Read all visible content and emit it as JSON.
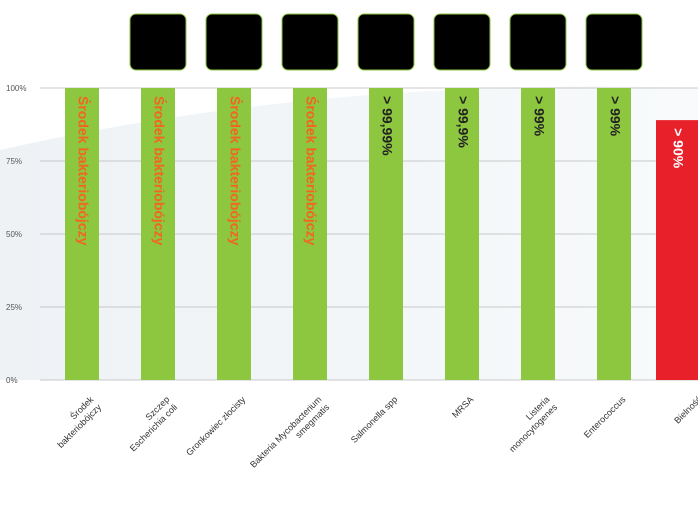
{
  "chart_data": {
    "type": "bar",
    "categories": [
      [
        "Środek",
        "bakteriobójczy"
      ],
      [
        "Szczep",
        "Escherichia coli"
      ],
      [
        "Gronkowiec złocisty"
      ],
      [
        "Bakteria Mycobacterium",
        "smegmatis"
      ],
      [
        "Salmonella spp"
      ],
      [
        "MRSA"
      ],
      [
        "Listeria",
        "monocytogenes"
      ],
      [
        "Enterococcus"
      ],
      [
        "Bielność"
      ]
    ],
    "values": [
      100,
      100,
      100,
      100,
      100,
      100,
      100,
      100,
      89
    ],
    "bar_labels": [
      "Środek bakteriobójczy",
      "Środek bakteriobójczy",
      "Środek bakteriobójczy",
      "Środek bakteriobójczy",
      "> 99,99%",
      "> 99,9%",
      "> 99%",
      "> 99%",
      "> 90%"
    ],
    "yticks": [
      "0%",
      "25%",
      "50%",
      "75%",
      "100%"
    ],
    "ylim": [
      0,
      100
    ],
    "grid": true,
    "colors": {
      "bar": "#8dc63f",
      "bar_highlight": "#e8202a",
      "label_orange": "#f26522",
      "label_dark": "#222222",
      "grid": "#b8b8b8",
      "thumb_border": "#8dc63f"
    },
    "thumbnails": [
      {
        "icon": "rod-bacteria-micrograph-icon",
        "bg": "#5a5a5a",
        "fg": "#c9c9c9"
      },
      {
        "icon": "cell-smear-micrograph-icon",
        "bg": "#f2f2f4",
        "fg": "#7a5fb0"
      },
      {
        "icon": "pink-tissue-micrograph-icon",
        "bg": "#e3c9cc",
        "fg": "#a37e86"
      },
      {
        "icon": "yellow-colony-micrograph-icon",
        "bg": "#c9c238",
        "fg": "#7a6b1a"
      },
      {
        "icon": "grey-cocci-micrograph-icon",
        "bg": "#6f7478",
        "fg": "#2c2f33"
      },
      {
        "icon": "pink-cell-micrograph-icon",
        "bg": "#f1c9cd",
        "fg": "#e07784"
      },
      {
        "icon": "single-bacterium-micrograph-icon",
        "bg": "#e9ecef",
        "fg": "#111111"
      }
    ]
  }
}
